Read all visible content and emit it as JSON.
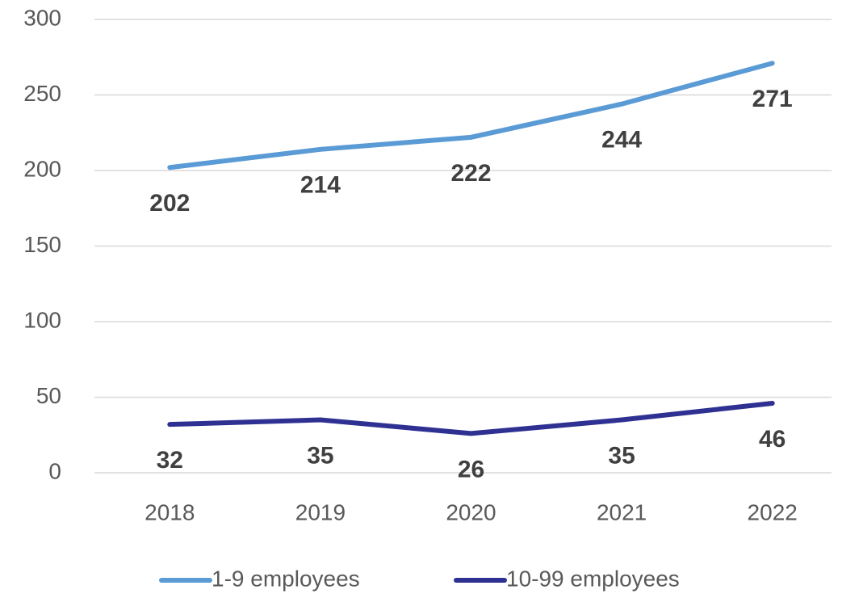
{
  "chart_data": {
    "type": "line",
    "categories": [
      "2018",
      "2019",
      "2020",
      "2021",
      "2022"
    ],
    "series": [
      {
        "name": "1-9 employees",
        "color": "#5b9bd5",
        "values": [
          202,
          214,
          222,
          244,
          271
        ]
      },
      {
        "name": "10-99 employees",
        "color": "#2e3192",
        "values": [
          32,
          35,
          26,
          35,
          46
        ]
      }
    ],
    "ylim": [
      0,
      300
    ],
    "yticks": [
      0,
      50,
      100,
      150,
      200,
      250,
      300
    ],
    "grid": true,
    "legend": "bottom"
  }
}
